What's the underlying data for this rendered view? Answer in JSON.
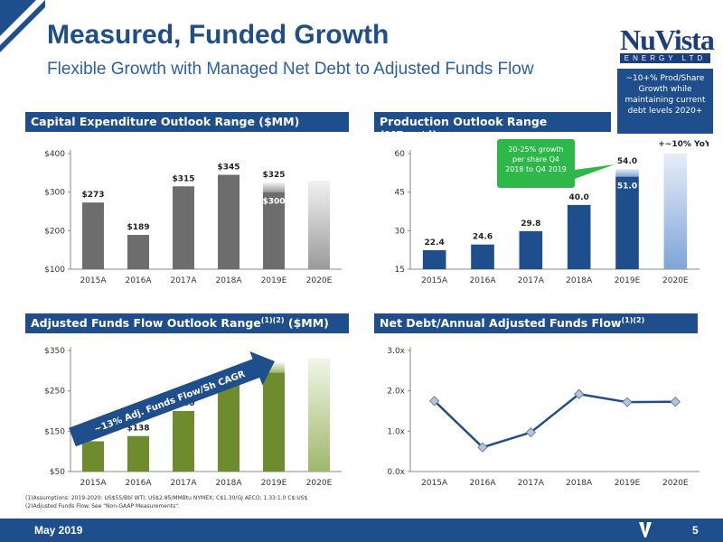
{
  "header": {
    "title": "Measured, Funded Growth",
    "subtitle": "Flexible Growth with Managed Net Debt to Adjusted Funds Flow"
  },
  "logo": {
    "main": "NuVista",
    "sub": "ENERGY LTD"
  },
  "callout_blue": "~10+% Prod/Share Growth while maintaining current debt levels 2020+",
  "panels": {
    "capex": "Capital Expenditure Outlook Range ($MM)",
    "production": "Production Outlook Range (MBoe/d)",
    "aff": "Adjusted Funds Flow Outlook Range",
    "aff_sup": "(1)(2)",
    "aff_units": " ($MM)",
    "debt": "Net Debt/Annual Adjusted Funds Flow",
    "debt_sup": "(1)(2)"
  },
  "chart_data": [
    {
      "type": "bar",
      "title": "Capital Expenditure Outlook Range ($MM)",
      "categories": [
        "2015A",
        "2016A",
        "2017A",
        "2018A",
        "2019E",
        "2020E"
      ],
      "values": [
        273,
        189,
        315,
        345,
        325,
        330
      ],
      "value_labels": [
        "$273",
        "$189",
        "$315",
        "$345",
        "$325",
        ""
      ],
      "range_low": {
        "2019E": 300
      },
      "range_low_label": "$300",
      "yticks": [
        "$100",
        "$200",
        "$300",
        "$400"
      ],
      "ylim": [
        100,
        400
      ],
      "color": "#6d6d6d"
    },
    {
      "type": "bar",
      "title": "Production Outlook Range (MBoe/d)",
      "categories": [
        "2015A",
        "2016A",
        "2017A",
        "2018A",
        "2019E",
        "2020E"
      ],
      "values": [
        22.4,
        24.6,
        29.8,
        40.0,
        54.0,
        60.0
      ],
      "value_labels": [
        "22.4",
        "24.6",
        "29.8",
        "40.0",
        "54.0",
        ""
      ],
      "range_low": {
        "2019E": 51.0
      },
      "range_low_label": "51.0",
      "yticks": [
        "15",
        "30",
        "45",
        "60"
      ],
      "ylim": [
        15,
        60
      ],
      "color": "#1f4e8c",
      "annotation_green": "20-25% growth per share Q4 2018 to Q4 2019",
      "annotation_yoy": "+~10% YoY"
    },
    {
      "type": "bar",
      "title": "Adjusted Funds Flow Outlook Range ($MM)",
      "categories": [
        "2015A",
        "2016A",
        "2017A",
        "2018A",
        "2019E",
        "2020E"
      ],
      "values": [
        125,
        138,
        200,
        265,
        320,
        330
      ],
      "value_labels": [
        "$125",
        "$138",
        "$200",
        "$265",
        "",
        ""
      ],
      "range_low": {
        "2019E": 295
      },
      "yticks": [
        "$50",
        "$150",
        "$250",
        "$350"
      ],
      "ylim": [
        50,
        350
      ],
      "color": "#6e8b2e",
      "arrow_label": "~13% Adj. Funds Flow/Sh CAGR"
    },
    {
      "type": "line",
      "title": "Net Debt/Annual Adjusted Funds Flow",
      "categories": [
        "2015A",
        "2016A",
        "2017A",
        "2018A",
        "2019E",
        "2020E"
      ],
      "values": [
        1.75,
        0.6,
        0.97,
        1.92,
        1.72,
        1.73
      ],
      "yticks": [
        "0.0x",
        "1.0x",
        "2.0x",
        "3.0x"
      ],
      "ylim": [
        0,
        3
      ],
      "color": "#1f4e8c"
    }
  ],
  "footnotes": [
    "(1)Assumptions: 2019-2020: US$55/Bbl WTI; US$2.85/MMBtu NYMEX; C$1.30/GJ AECO; 1.33:1.0 C$:US$",
    "(2)Adjusted Funds Flow. See \"Non-GAAP Measurements\"."
  ],
  "footer": {
    "date": "May 2019",
    "page": "5"
  }
}
